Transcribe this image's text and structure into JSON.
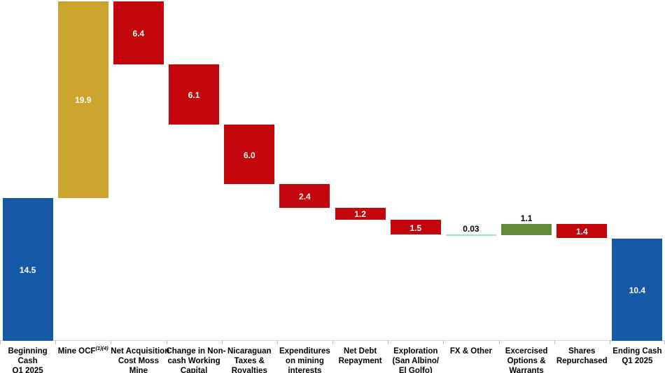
{
  "chart_data": {
    "type": "waterfall",
    "title": "",
    "orientation": "vertical",
    "grid": false,
    "legend": false,
    "value_axis_hidden": true,
    "baseline_value": 0,
    "max_level": 34.4,
    "colors": {
      "absolute": "#1659A7",
      "increase_gold": "#CBA42D",
      "increase_green": "#628C3C",
      "decrease": "#C3050C",
      "tiny_connector": "#A5E3C4",
      "axis_line": "#D2D2D2",
      "axis_tick": "#BFBFBF",
      "value_text_inside": "#FFFFFF",
      "value_text_outside": "#000000",
      "category_text": "#000000"
    },
    "bars": [
      {
        "key": "beginning-cash",
        "label_lines": [
          "Beginning",
          "Cash",
          "Q1 2025"
        ],
        "sup": "",
        "value": 14.5,
        "display": "14.5",
        "kind": "absolute",
        "color": "#1659A7",
        "label_style": "inside"
      },
      {
        "key": "mine-ocf",
        "label_lines": [
          "Mine OCF"
        ],
        "sup": "(1)(4)",
        "value": 19.9,
        "display": "19.9",
        "kind": "increase",
        "color": "#CBA42D",
        "label_style": "inside"
      },
      {
        "key": "net-acquisition-cost-moss",
        "label_lines": [
          "Net Acquisition",
          "Cost Moss",
          "Mine"
        ],
        "sup": "",
        "value": 6.4,
        "display": "6.4",
        "kind": "decrease",
        "color": "#C3050C",
        "label_style": "inside"
      },
      {
        "key": "change-in-non-cash-working-capital",
        "label_lines": [
          "Change in Non-",
          "cash Working",
          "Capital"
        ],
        "sup": "",
        "value": 6.1,
        "display": "6.1",
        "kind": "decrease",
        "color": "#C3050C",
        "label_style": "inside"
      },
      {
        "key": "nicaraguan-taxes-royalties",
        "label_lines": [
          "Nicaraguan",
          "Taxes &",
          "Royalties"
        ],
        "sup": "",
        "value": 6.0,
        "display": "6.0",
        "kind": "decrease",
        "color": "#C3050C",
        "label_style": "inside"
      },
      {
        "key": "expenditures-on-mining-interests",
        "label_lines": [
          "Expenditures",
          "on mining",
          "interests"
        ],
        "sup": "",
        "value": 2.4,
        "display": "2.4",
        "kind": "decrease",
        "color": "#C3050C",
        "label_style": "inside"
      },
      {
        "key": "net-debt-repayment",
        "label_lines": [
          "Net Debt",
          "Repayment"
        ],
        "sup": "",
        "value": 1.2,
        "display": "1.2",
        "kind": "decrease",
        "color": "#C3050C",
        "label_style": "inside"
      },
      {
        "key": "exploration-san-albino",
        "label_lines": [
          "Exploration",
          "(San Albino/",
          "El Golfo)"
        ],
        "sup": "",
        "value": 1.5,
        "display": "1.5",
        "kind": "decrease",
        "color": "#C3050C",
        "label_style": "inside"
      },
      {
        "key": "fx-other",
        "label_lines": [
          "FX & Other"
        ],
        "sup": "",
        "value": 0.03,
        "display": "0.03",
        "kind": "decrease",
        "color": "#A5E3C4",
        "label_style": "above",
        "thin": true
      },
      {
        "key": "excercised-options-warrants",
        "label_lines": [
          "Excercised",
          "Options &",
          "Warrants"
        ],
        "sup": "",
        "value": 1.1,
        "display": "1.1",
        "kind": "increase",
        "color": "#628C3C",
        "label_style": "above"
      },
      {
        "key": "shares-repurchased",
        "label_lines": [
          "Shares",
          "Repurchased"
        ],
        "sup": "",
        "value": 1.4,
        "display": "1.4",
        "kind": "decrease",
        "color": "#C3050C",
        "label_style": "inside"
      },
      {
        "key": "ending-cash-q1-2025",
        "label_lines": [
          "Ending Cash",
          "Q1 2025"
        ],
        "sup": "",
        "value": 10.4,
        "display": "10.4",
        "kind": "absolute",
        "color": "#1659A7",
        "label_style": "inside"
      }
    ]
  }
}
